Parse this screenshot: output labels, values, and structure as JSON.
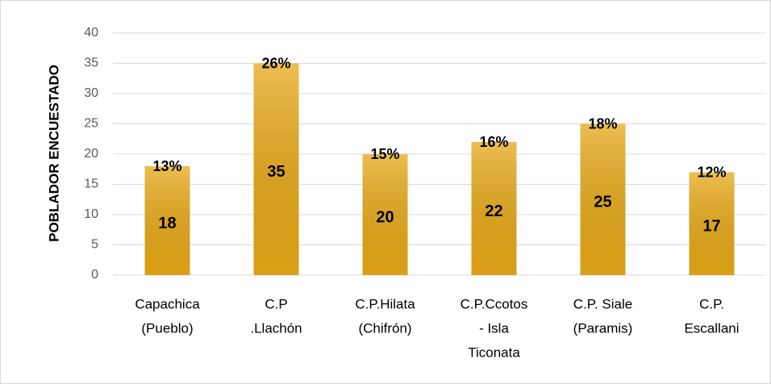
{
  "chart_data": {
    "type": "bar",
    "y_label": "POBLADOR ENCUESTADO",
    "categories": [
      [
        "Capachica",
        "(Pueblo)"
      ],
      [
        "C.P",
        ".Llachón"
      ],
      [
        "C.P.Hilata",
        "(Chifrón)"
      ],
      [
        "C.P.Ccotos",
        "- Isla",
        "Ticonata"
      ],
      [
        "C.P. Siale",
        "(Paramis)"
      ],
      [
        "C.P.",
        "Escallani"
      ]
    ],
    "values": [
      18,
      35,
      20,
      22,
      25,
      17
    ],
    "share_labels": [
      "13%",
      "26%",
      "15%",
      "16%",
      "18%",
      "12%"
    ],
    "color": "#e6a817",
    "ylim": [
      0,
      40
    ],
    "yticks": [
      0,
      5,
      10,
      15,
      20,
      25,
      30,
      35,
      40
    ],
    "grid": true
  }
}
